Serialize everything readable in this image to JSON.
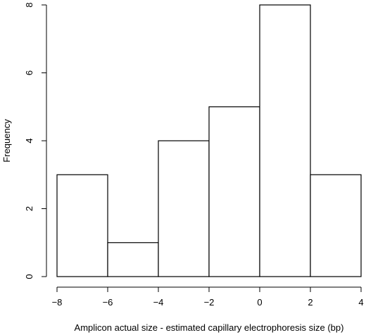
{
  "chart_data": {
    "type": "bar",
    "subtype": "histogram",
    "bins": [
      {
        "start": -8,
        "end": -6,
        "count": 3
      },
      {
        "start": -6,
        "end": -4,
        "count": 1
      },
      {
        "start": -4,
        "end": -2,
        "count": 4
      },
      {
        "start": -2,
        "end": 0,
        "count": 5
      },
      {
        "start": 0,
        "end": 2,
        "count": 8
      },
      {
        "start": 2,
        "end": 4,
        "count": 3
      }
    ],
    "xlabel": "Amplicon actual size - estimated capillary electrophoresis size (bp)",
    "ylabel": "Frequency",
    "xlim": [
      -8,
      4
    ],
    "ylim": [
      0,
      8
    ],
    "x_ticks": [
      "−8",
      "−6",
      "−4",
      "−2",
      "0",
      "2",
      "4"
    ],
    "x_tick_values": [
      -8,
      -6,
      -4,
      -2,
      0,
      2,
      4
    ],
    "y_ticks": [
      "0",
      "2",
      "4",
      "6",
      "8"
    ],
    "y_tick_values": [
      0,
      2,
      4,
      6,
      8
    ],
    "grid": false,
    "bar_fill": "#ffffff",
    "bar_stroke": "#000000"
  }
}
